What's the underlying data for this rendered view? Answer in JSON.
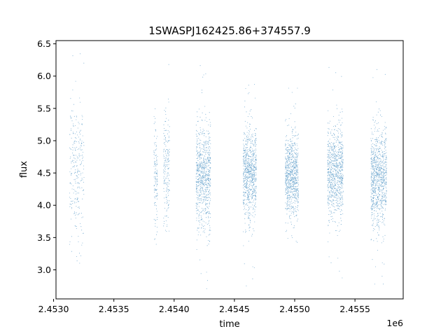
{
  "chart_data": {
    "type": "scatter",
    "title": "1SWASPJ162425.86+374557.9",
    "xlabel": "time",
    "ylabel": "flux",
    "x_offset_label": "1e6",
    "xlim": [
      2.45302,
      2.4559
    ],
    "ylim": [
      2.55,
      6.55
    ],
    "x_ticks": [
      2.453,
      2.4535,
      2.454,
      2.4545,
      2.455,
      2.4555
    ],
    "x_tick_labels": [
      "2.4530",
      "2.4535",
      "2.4540",
      "2.4545",
      "2.4550",
      "2.4555"
    ],
    "y_ticks": [
      3.0,
      3.5,
      4.0,
      4.5,
      5.0,
      5.5,
      6.0,
      6.5
    ],
    "y_tick_labels": [
      "3.0",
      "3.5",
      "4.0",
      "4.5",
      "5.0",
      "5.5",
      "6.0",
      "6.5"
    ],
    "grid": false,
    "marker_color": "#1f77b4",
    "observing_seasons": [
      {
        "x_start": 2.45313,
        "x_end": 2.45325,
        "flux_low": 2.78,
        "flux_high": 6.35,
        "flux_center": 4.55,
        "flux_spread": 0.55,
        "density": 1
      },
      {
        "x_start": 2.45383,
        "x_end": 2.45386,
        "flux_low": 3.4,
        "flux_high": 5.5,
        "flux_center": 4.45,
        "flux_spread": 0.4,
        "density": 0.5
      },
      {
        "x_start": 2.45391,
        "x_end": 2.45396,
        "flux_low": 3.6,
        "flux_high": 6.25,
        "flux_center": 4.5,
        "flux_spread": 0.45,
        "density": 0.7
      },
      {
        "x_start": 2.45418,
        "x_end": 2.4543,
        "flux_low": 2.7,
        "flux_high": 6.35,
        "flux_center": 4.45,
        "flux_spread": 0.4,
        "density": 3
      },
      {
        "x_start": 2.45457,
        "x_end": 2.45468,
        "flux_low": 2.7,
        "flux_high": 5.95,
        "flux_center": 4.5,
        "flux_spread": 0.35,
        "density": 3
      },
      {
        "x_start": 2.45492,
        "x_end": 2.45503,
        "flux_low": 3.3,
        "flux_high": 6.05,
        "flux_center": 4.45,
        "flux_spread": 0.33,
        "density": 3
      },
      {
        "x_start": 2.45527,
        "x_end": 2.4554,
        "flux_low": 2.75,
        "flux_high": 6.15,
        "flux_center": 4.5,
        "flux_spread": 0.35,
        "density": 3.2
      },
      {
        "x_start": 2.45563,
        "x_end": 2.45576,
        "flux_low": 2.72,
        "flux_high": 6.35,
        "flux_center": 4.45,
        "flux_spread": 0.38,
        "density": 3.5
      }
    ]
  }
}
